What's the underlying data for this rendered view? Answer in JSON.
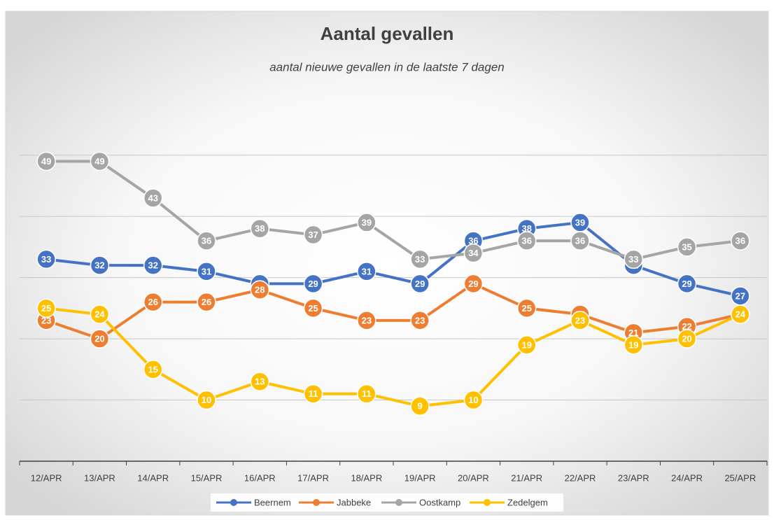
{
  "chart_data": {
    "type": "line",
    "title": "Aantal gevallen",
    "subtitle": "aantal nieuwe gevallen in de laatste 7 dagen",
    "categories": [
      "12/APR",
      "13/APR",
      "14/APR",
      "15/APR",
      "16/APR",
      "17/APR",
      "18/APR",
      "19/APR",
      "20/APR",
      "21/APR",
      "22/APR",
      "23/APR",
      "24/APR",
      "25/APR"
    ],
    "series": [
      {
        "name": "Beernem",
        "color": "#4472c4",
        "values": [
          33,
          32,
          32,
          31,
          29,
          29,
          31,
          29,
          36,
          38,
          39,
          32,
          29,
          27
        ]
      },
      {
        "name": "Jabbeke",
        "color": "#ed7d31",
        "values": [
          23,
          20,
          26,
          26,
          28,
          25,
          23,
          23,
          29,
          25,
          24,
          21,
          22,
          24
        ]
      },
      {
        "name": "Oostkamp",
        "color": "#a5a5a5",
        "values": [
          49,
          49,
          43,
          36,
          38,
          37,
          39,
          33,
          34,
          36,
          36,
          33,
          35,
          36
        ]
      },
      {
        "name": "Zedelgem",
        "color": "#ffc000",
        "values": [
          25,
          24,
          15,
          10,
          13,
          11,
          11,
          9,
          10,
          19,
          23,
          19,
          20,
          24
        ]
      }
    ],
    "ylim": [
      0,
      55
    ],
    "yticks": [
      0,
      10,
      20,
      30,
      40,
      50
    ],
    "grid": true,
    "legend": "bottom"
  }
}
